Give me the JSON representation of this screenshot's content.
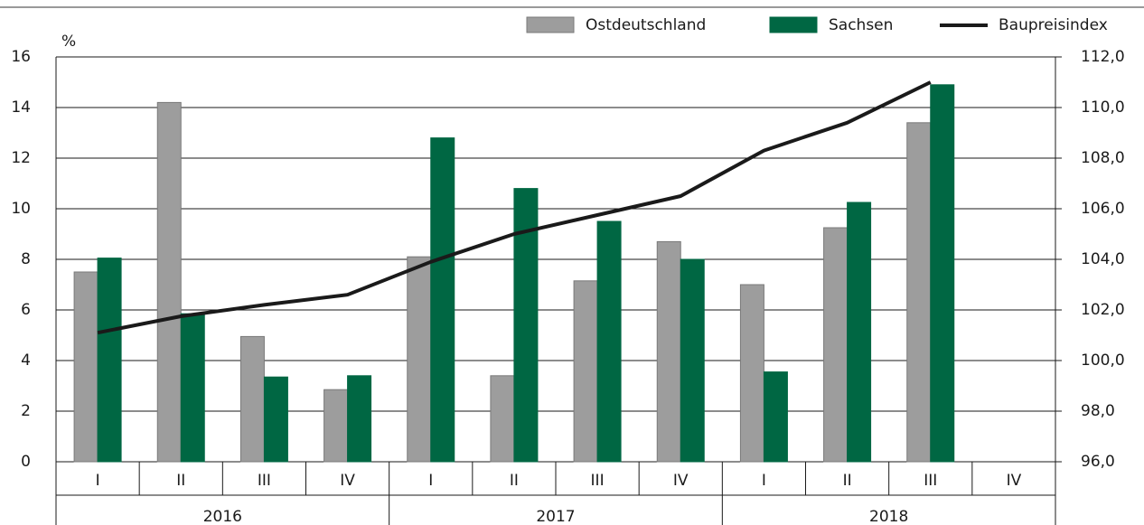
{
  "chart_data": {
    "type": "bar",
    "categories": [
      "I",
      "II",
      "III",
      "IV",
      "I",
      "II",
      "III",
      "IV",
      "I",
      "II",
      "III",
      "IV"
    ],
    "years": [
      "2016",
      "2017",
      "2018"
    ],
    "y_label": "%",
    "ylim": [
      0,
      16
    ],
    "yticks": [
      0,
      2,
      4,
      6,
      8,
      10,
      12,
      14,
      16
    ],
    "y2lim": [
      96,
      112
    ],
    "y2ticks": [
      {
        "value": 96,
        "label": "96,0"
      },
      {
        "value": 98,
        "label": "98,0"
      },
      {
        "value": 100,
        "label": "100,0"
      },
      {
        "value": 102,
        "label": "102,0"
      },
      {
        "value": 104,
        "label": "104,0"
      },
      {
        "value": 106,
        "label": "106,0"
      },
      {
        "value": 108,
        "label": "108,0"
      },
      {
        "value": 110,
        "label": "110,0"
      },
      {
        "value": 112,
        "label": "112,0"
      }
    ],
    "grid": true,
    "legend": "top-right",
    "series": [
      {
        "name": "Ostdeutschland",
        "type": "bar",
        "color": "#9d9d9d",
        "values": [
          7.5,
          14.2,
          4.95,
          2.85,
          8.1,
          3.4,
          7.15,
          8.7,
          7.0,
          9.25,
          13.4,
          null
        ]
      },
      {
        "name": "Sachsen",
        "type": "bar",
        "color": "#006743",
        "values": [
          8.05,
          5.85,
          3.35,
          3.4,
          12.8,
          10.8,
          9.5,
          8.0,
          3.55,
          10.25,
          14.9,
          null
        ]
      },
      {
        "name": "Baupreisindex",
        "type": "line",
        "axis": "y2",
        "color": "#1a1a1a",
        "values": [
          101.1,
          101.75,
          102.2,
          102.6,
          103.9,
          105.0,
          105.75,
          106.5,
          108.3,
          109.4,
          111.0,
          null
        ]
      }
    ]
  }
}
